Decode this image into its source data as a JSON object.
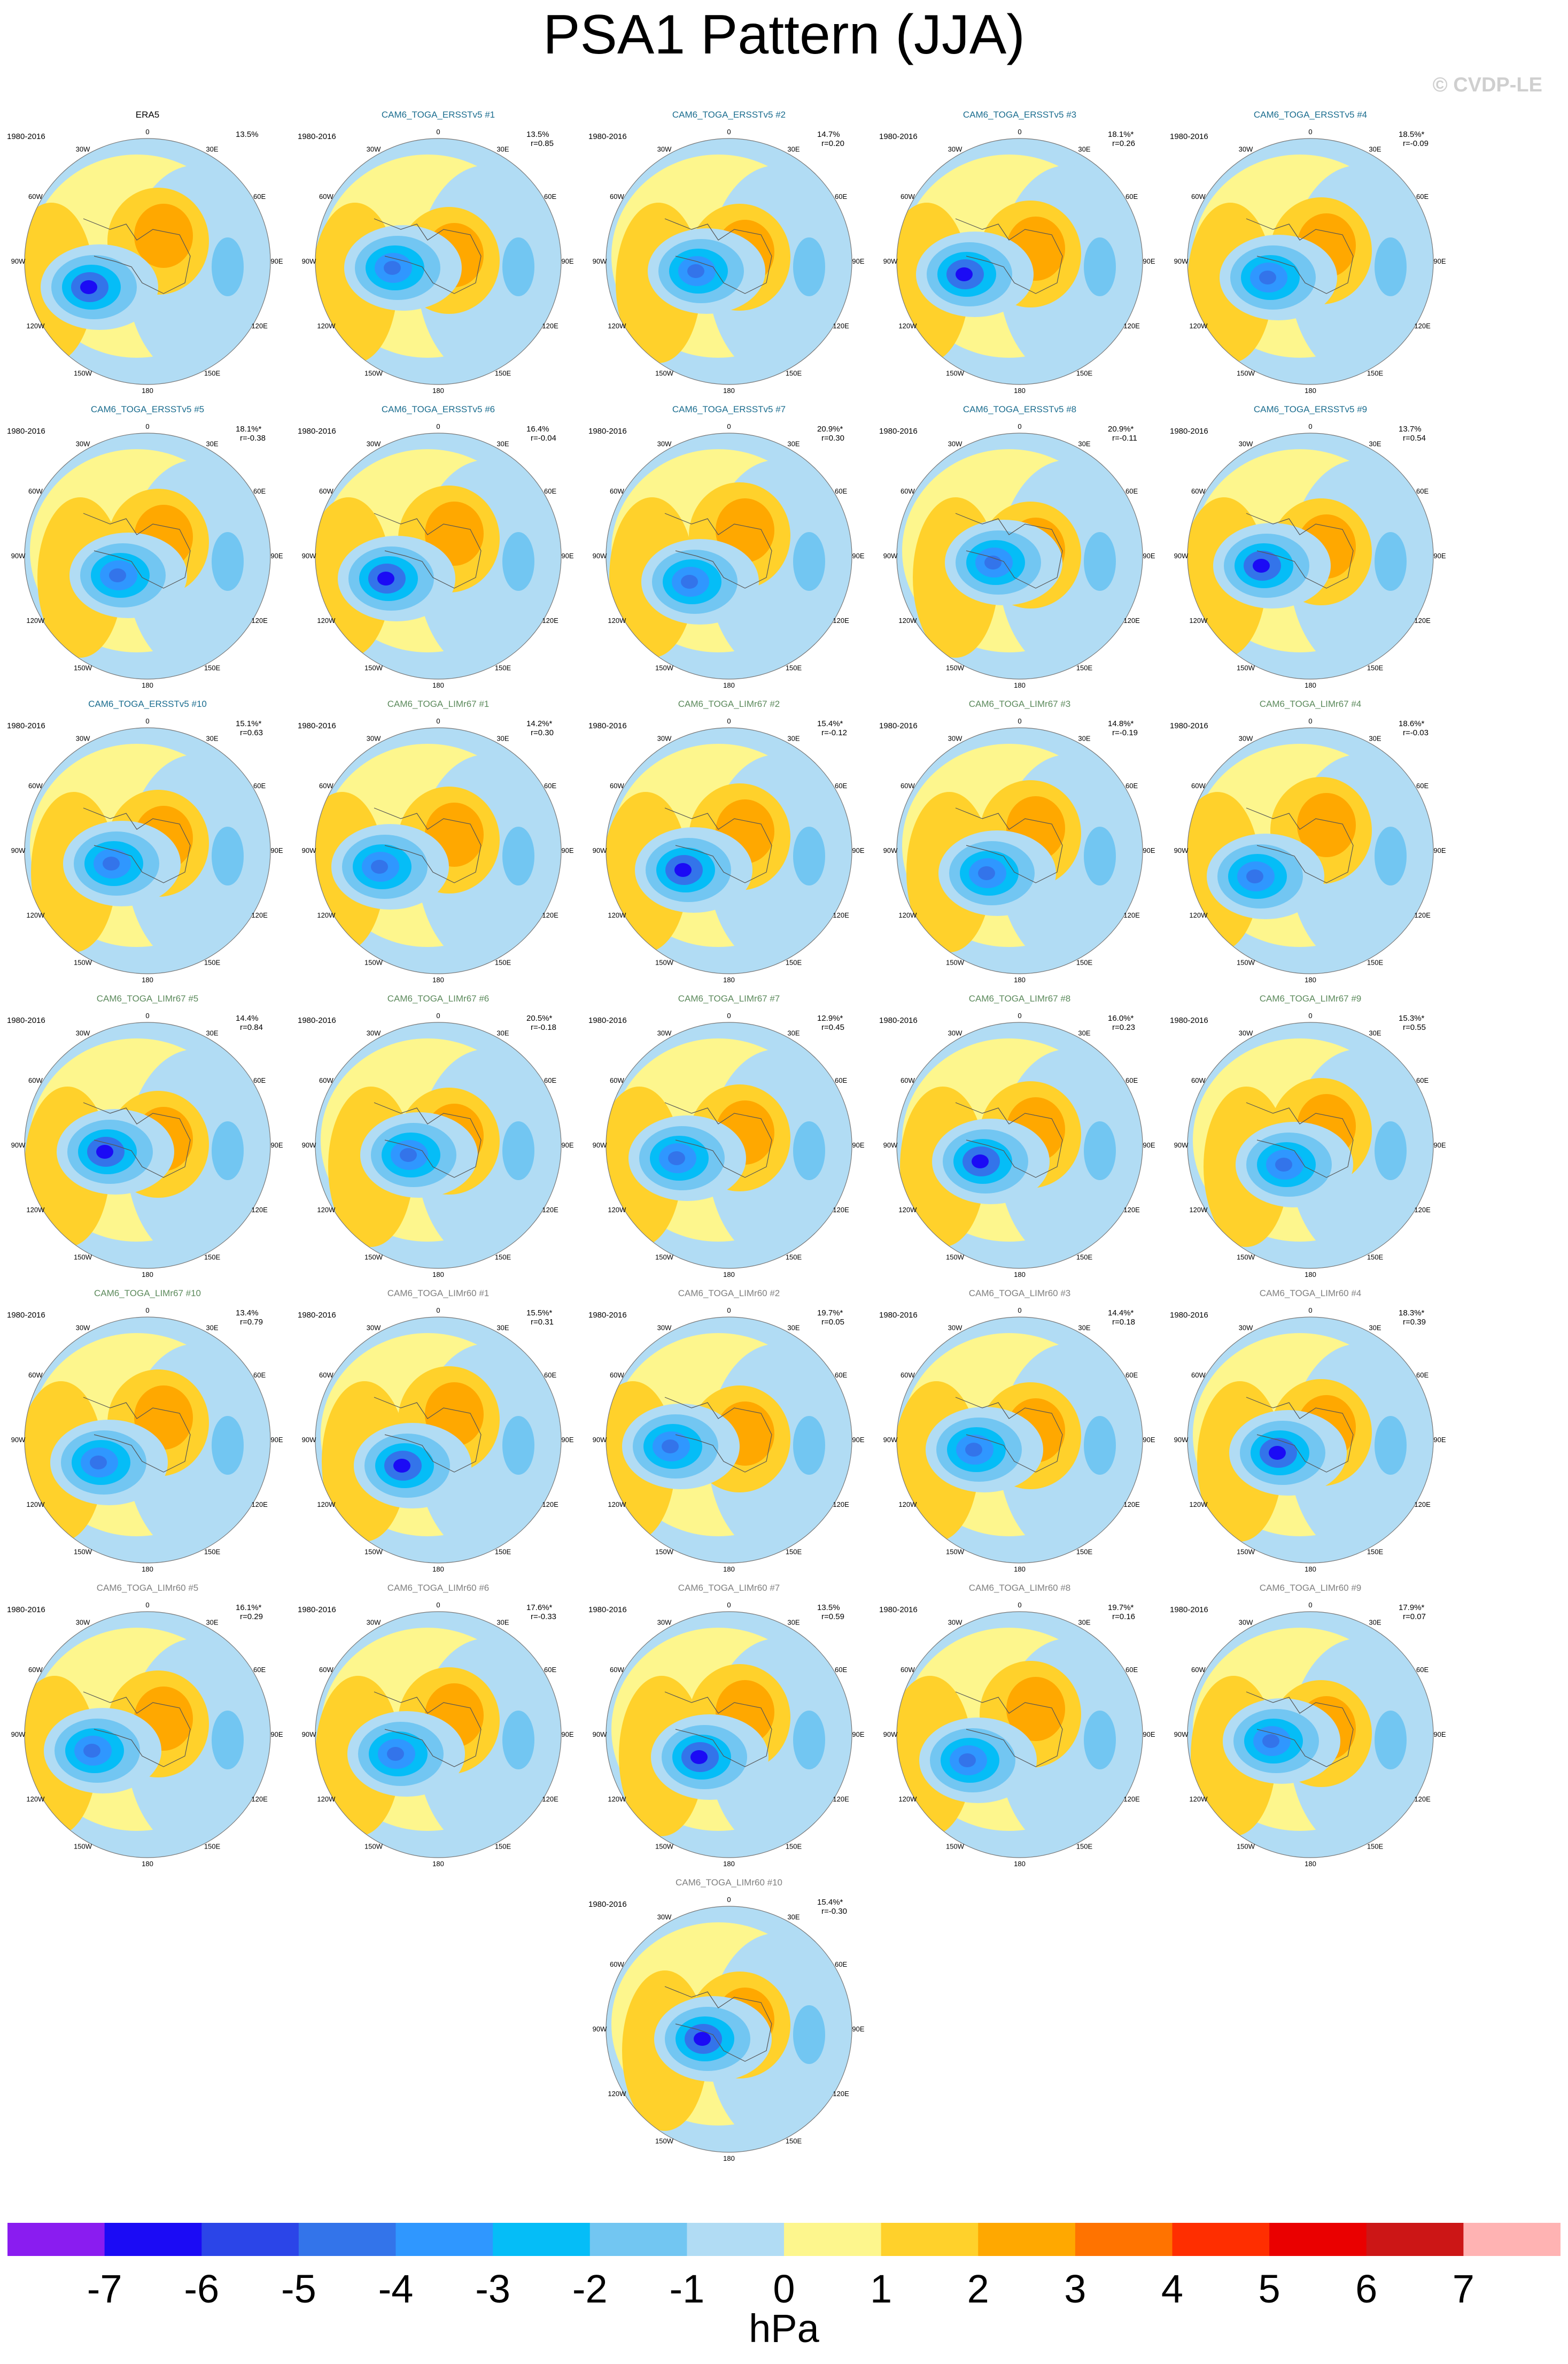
{
  "title": "PSA1 Pattern (JJA)",
  "copyright": "© CVDP-LE",
  "period": "1980-2016",
  "lon_labels": [
    "0",
    "30E",
    "60E",
    "90E",
    "120E",
    "150E",
    "180",
    "150W",
    "120W",
    "90W",
    "60W",
    "30W"
  ],
  "colors": {
    "ERA5": "#000000",
    "ERSSTv5": "#1b6d8f",
    "LIMr67": "#5c8a5c",
    "LIMr60": "#808080"
  },
  "panels": [
    {
      "title": "ERA5",
      "group": "ERA5",
      "pct": "13.5%",
      "r": ""
    },
    {
      "title": "CAM6_TOGA_ERSSTv5 #1",
      "group": "ERSSTv5",
      "pct": "13.5%",
      "r": "r=0.85"
    },
    {
      "title": "CAM6_TOGA_ERSSTv5 #2",
      "group": "ERSSTv5",
      "pct": "14.7%",
      "r": "r=0.20"
    },
    {
      "title": "CAM6_TOGA_ERSSTv5 #3",
      "group": "ERSSTv5",
      "pct": "18.1%*",
      "r": "r=0.26"
    },
    {
      "title": "CAM6_TOGA_ERSSTv5 #4",
      "group": "ERSSTv5",
      "pct": "18.5%*",
      "r": "r=-0.09"
    },
    {
      "title": "CAM6_TOGA_ERSSTv5 #5",
      "group": "ERSSTv5",
      "pct": "18.1%*",
      "r": "r=-0.38"
    },
    {
      "title": "CAM6_TOGA_ERSSTv5 #6",
      "group": "ERSSTv5",
      "pct": "16.4%",
      "r": "r=-0.04"
    },
    {
      "title": "CAM6_TOGA_ERSSTv5 #7",
      "group": "ERSSTv5",
      "pct": "20.9%*",
      "r": "r=0.30"
    },
    {
      "title": "CAM6_TOGA_ERSSTv5 #8",
      "group": "ERSSTv5",
      "pct": "20.9%*",
      "r": "r=-0.11"
    },
    {
      "title": "CAM6_TOGA_ERSSTv5 #9",
      "group": "ERSSTv5",
      "pct": "13.7%",
      "r": "r=0.54"
    },
    {
      "title": "CAM6_TOGA_ERSSTv5 #10",
      "group": "ERSSTv5",
      "pct": "15.1%*",
      "r": "r=0.63"
    },
    {
      "title": "CAM6_TOGA_LIMr67 #1",
      "group": "LIMr67",
      "pct": "14.2%*",
      "r": "r=0.30"
    },
    {
      "title": "CAM6_TOGA_LIMr67 #2",
      "group": "LIMr67",
      "pct": "15.4%*",
      "r": "r=-0.12"
    },
    {
      "title": "CAM6_TOGA_LIMr67 #3",
      "group": "LIMr67",
      "pct": "14.8%*",
      "r": "r=-0.19"
    },
    {
      "title": "CAM6_TOGA_LIMr67 #4",
      "group": "LIMr67",
      "pct": "18.6%*",
      "r": "r=-0.03"
    },
    {
      "title": "CAM6_TOGA_LIMr67 #5",
      "group": "LIMr67",
      "pct": "14.4%",
      "r": "r=0.84"
    },
    {
      "title": "CAM6_TOGA_LIMr67 #6",
      "group": "LIMr67",
      "pct": "20.5%*",
      "r": "r=-0.18"
    },
    {
      "title": "CAM6_TOGA_LIMr67 #7",
      "group": "LIMr67",
      "pct": "12.9%*",
      "r": "r=0.45"
    },
    {
      "title": "CAM6_TOGA_LIMr67 #8",
      "group": "LIMr67",
      "pct": "16.0%*",
      "r": "r=0.23"
    },
    {
      "title": "CAM6_TOGA_LIMr67 #9",
      "group": "LIMr67",
      "pct": "15.3%*",
      "r": "r=0.55"
    },
    {
      "title": "CAM6_TOGA_LIMr67 #10",
      "group": "LIMr67",
      "pct": "13.4%",
      "r": "r=0.79"
    },
    {
      "title": "CAM6_TOGA_LIMr60 #1",
      "group": "LIMr60",
      "pct": "15.5%*",
      "r": "r=0.31"
    },
    {
      "title": "CAM6_TOGA_LIMr60 #2",
      "group": "LIMr60",
      "pct": "19.7%*",
      "r": "r=0.05"
    },
    {
      "title": "CAM6_TOGA_LIMr60 #3",
      "group": "LIMr60",
      "pct": "14.4%*",
      "r": "r=0.18"
    },
    {
      "title": "CAM6_TOGA_LIMr60 #4",
      "group": "LIMr60",
      "pct": "18.3%*",
      "r": "r=0.39"
    },
    {
      "title": "CAM6_TOGA_LIMr60 #5",
      "group": "LIMr60",
      "pct": "16.1%*",
      "r": "r=0.29"
    },
    {
      "title": "CAM6_TOGA_LIMr60 #6",
      "group": "LIMr60",
      "pct": "17.6%*",
      "r": "r=-0.33"
    },
    {
      "title": "CAM6_TOGA_LIMr60 #7",
      "group": "LIMr60",
      "pct": "13.5%",
      "r": "r=0.59"
    },
    {
      "title": "CAM6_TOGA_LIMr60 #8",
      "group": "LIMr60",
      "pct": "19.7%*",
      "r": "r=0.16"
    },
    {
      "title": "CAM6_TOGA_LIMr60 #9",
      "group": "LIMr60",
      "pct": "17.9%*",
      "r": "r=0.07"
    },
    {
      "title": "CAM6_TOGA_LIMr60 #10",
      "group": "LIMr60",
      "pct": "15.4%*",
      "r": "r=-0.30"
    }
  ],
  "colorbar": {
    "unit": "hPa",
    "labels": [
      "-7",
      "-6",
      "-5",
      "-4",
      "-3",
      "-2",
      "-1",
      "0",
      "1",
      "2",
      "3",
      "4",
      "5",
      "6",
      "7"
    ],
    "colors": [
      "#8a1cf0",
      "#1b0bf5",
      "#2b45e8",
      "#3374ea",
      "#2f97ff",
      "#05bdf7",
      "#72c6f2",
      "#b1dcf4",
      "#fdf68d",
      "#ffd12b",
      "#ffa800",
      "#ff7300",
      "#ff2e00",
      "#ea0000",
      "#cc1616",
      "#ffb3b3"
    ]
  }
}
